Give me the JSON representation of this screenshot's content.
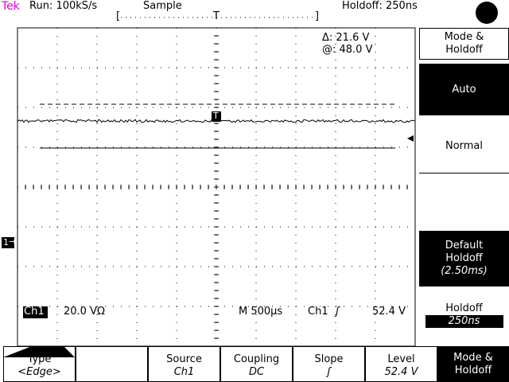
{
  "header": {
    "brand": "Tek",
    "acquisition": "Run: 100kS/s",
    "mode": "Sample",
    "holdoff": "Holdoff: 250ns"
  },
  "markers": {
    "trigger_position": "T",
    "trigger_point": "T",
    "channel": "1"
  },
  "cursor_readout": {
    "delta": "Δ: 21.6 V",
    "at": "@: 48.0 V"
  },
  "status": {
    "channel": "Ch1",
    "scale": "20.0 VΩ",
    "timebase": "M 500µs",
    "trigger_source": "Ch1",
    "trigger_slope": "ʃ",
    "trigger_level": "52.4 V"
  },
  "side_menu": {
    "title": "Mode & Holdoff",
    "items": [
      {
        "label": "Auto"
      },
      {
        "label": "Normal"
      },
      {
        "label": "Default Holdoff",
        "value": "(2.50ms)"
      },
      {
        "label": "Holdoff",
        "value": "250ns"
      }
    ]
  },
  "bottom_menu": [
    {
      "label": "Type",
      "value": "<Edge>"
    },
    {
      "label": "Source",
      "value": "Ch1"
    },
    {
      "label": "Coupling",
      "value": "DC"
    },
    {
      "label": "Slope",
      "value": "ʃ"
    },
    {
      "label": "Level",
      "value": "52.4 V"
    },
    {
      "label": "Mode & Holdoff"
    }
  ]
}
